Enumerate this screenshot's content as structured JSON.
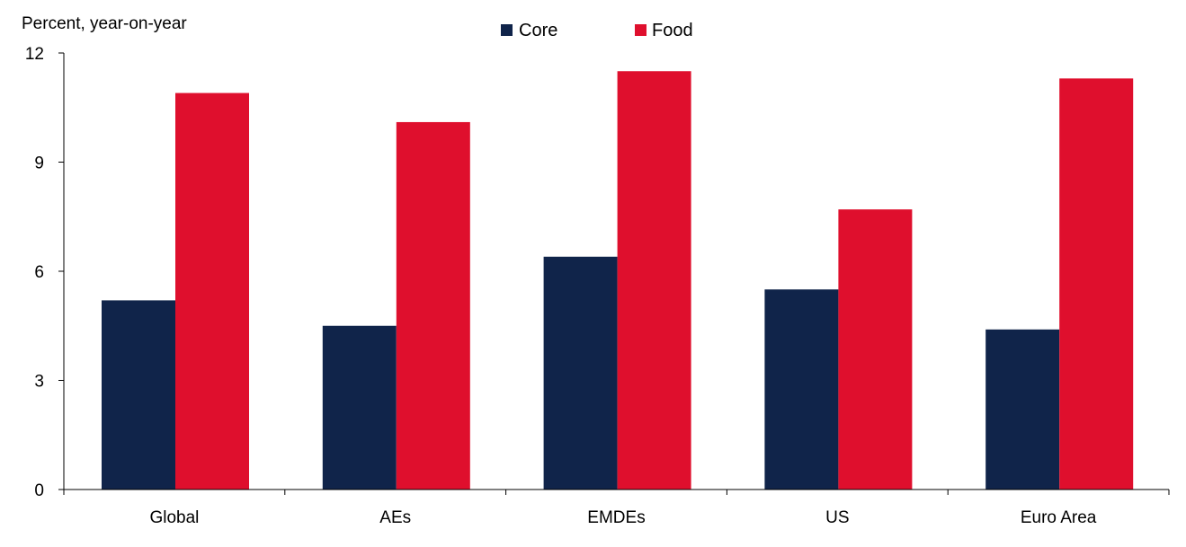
{
  "chart_data": {
    "type": "bar",
    "ylabel": "Percent, year-on-year",
    "categories": [
      "Global",
      "AEs",
      "EMDEs",
      "US",
      "Euro Area"
    ],
    "series": [
      {
        "name": "Core",
        "color": "#10244a",
        "values": [
          5.2,
          4.5,
          6.4,
          5.5,
          4.4
        ]
      },
      {
        "name": "Food",
        "color": "#df0f2d",
        "values": [
          10.9,
          10.1,
          11.5,
          7.7,
          11.3
        ]
      }
    ],
    "ylim": [
      0,
      12
    ],
    "yticks": [
      "0",
      "3",
      "6",
      "9",
      "12"
    ],
    "legend": "top-center",
    "grid": false
  }
}
